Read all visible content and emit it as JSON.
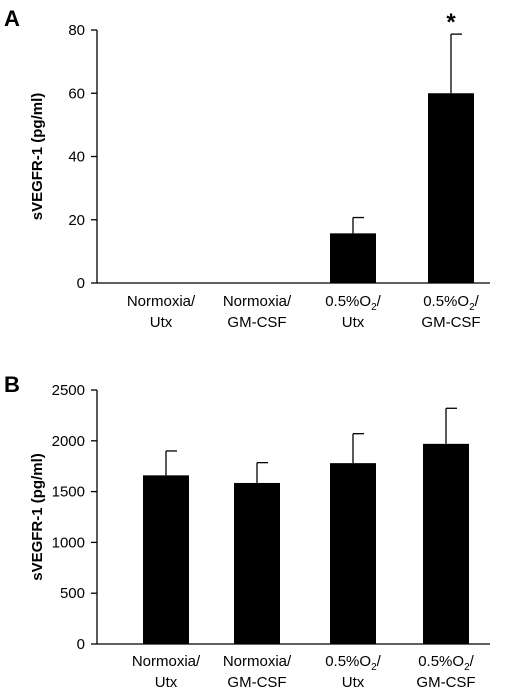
{
  "chart_data": [
    {
      "type": "bar",
      "panel": "A",
      "ylabel": "sVEGFR-1 (pg/ml)",
      "ylim": [
        0,
        80
      ],
      "yticks": [
        0,
        20,
        40,
        60,
        80
      ],
      "categories": [
        {
          "line1": "Normoxia/",
          "line2": "Utx"
        },
        {
          "line1": "Normoxia/",
          "line2": "GM-CSF"
        },
        {
          "line1": "0.5%O",
          "sub": "2",
          "line1_tail": "/",
          "line2": "Utx"
        },
        {
          "line1": "0.5%O",
          "sub": "2",
          "line1_tail": "/",
          "line2": "GM-CSF"
        }
      ],
      "values": [
        0,
        0,
        15.7,
        60
      ],
      "errors": [
        0,
        0,
        5,
        18.7
      ],
      "annotations": [
        "",
        "",
        "",
        "*"
      ],
      "grid": false,
      "bar_color": "#000000"
    },
    {
      "type": "bar",
      "panel": "B",
      "ylabel": "sVEGFR-1 (pg/ml)",
      "ylim": [
        0,
        2500
      ],
      "yticks": [
        0,
        500,
        1000,
        1500,
        2000,
        2500
      ],
      "categories": [
        {
          "line1": "Normoxia/",
          "line2": "Utx"
        },
        {
          "line1": "Normoxia/",
          "line2": "GM-CSF"
        },
        {
          "line1": "0.5%O",
          "sub": "2",
          "line1_tail": "/",
          "line2": "Utx"
        },
        {
          "line1": "0.5%O",
          "sub": "2",
          "line1_tail": "/",
          "line2": "GM-CSF"
        }
      ],
      "values": [
        1660,
        1585,
        1780,
        1970
      ],
      "errors": [
        240,
        200,
        290,
        350
      ],
      "annotations": [
        "",
        "",
        "",
        ""
      ],
      "grid": false,
      "bar_color": "#000000"
    }
  ]
}
